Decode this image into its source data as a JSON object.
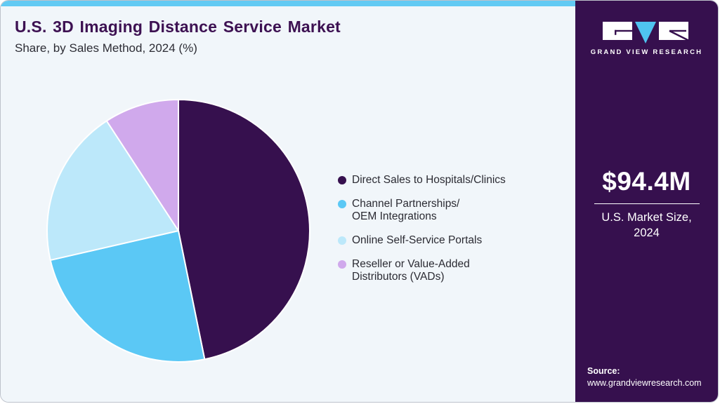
{
  "header": {
    "title": "U.S. 3D Imaging Distance Service Market",
    "subtitle": "Share, by Sales Method, 2024 (%)"
  },
  "chart_data": {
    "type": "pie",
    "title": "U.S. 3D Imaging Distance Service Market Share, by Sales Method, 2024 (%)",
    "categories": [
      "Direct Sales to Hospitals/Clinics",
      "Channel Partnerships/OEM Integrations",
      "Online Self-Service Portals",
      "Reseller or Value-Added Distributors (VADs)"
    ],
    "values": [
      46.8,
      24.6,
      19.4,
      9.2
    ],
    "unit": "%",
    "colors": [
      "#36104e",
      "#5bc8f5",
      "#bce8fa",
      "#d0a9ec"
    ],
    "start_angle_deg": 0,
    "direction": "clockwise",
    "legend_position": "right",
    "data_labels_shown": false
  },
  "legend": {
    "items": [
      {
        "label": "Direct Sales to Hospitals/Clinics",
        "color": "#36104e"
      },
      {
        "label": "Channel Partnerships/\nOEM Integrations",
        "color": "#5bc8f5"
      },
      {
        "label": "Online Self-Service Portals",
        "color": "#bce8fa"
      },
      {
        "label": "Reseller or Value-Added\nDistributors (VADs)",
        "color": "#d0a9ec"
      }
    ]
  },
  "sidebar": {
    "brand_name": "GRAND VIEW RESEARCH",
    "market_size": {
      "value": "$94.4M",
      "caption": "U.S. Market Size,\n2024"
    },
    "source": {
      "label": "Source:",
      "url": "www.grandviewresearch.com"
    }
  },
  "theme": {
    "card_background": "#f1f6fa",
    "topbar_blue": "#62caf3",
    "sidebar_purple": "#36104e",
    "logo_triangle_blue": "#4fc3f0",
    "title_purple": "#3d1152",
    "body_text": "#2b2b33"
  }
}
